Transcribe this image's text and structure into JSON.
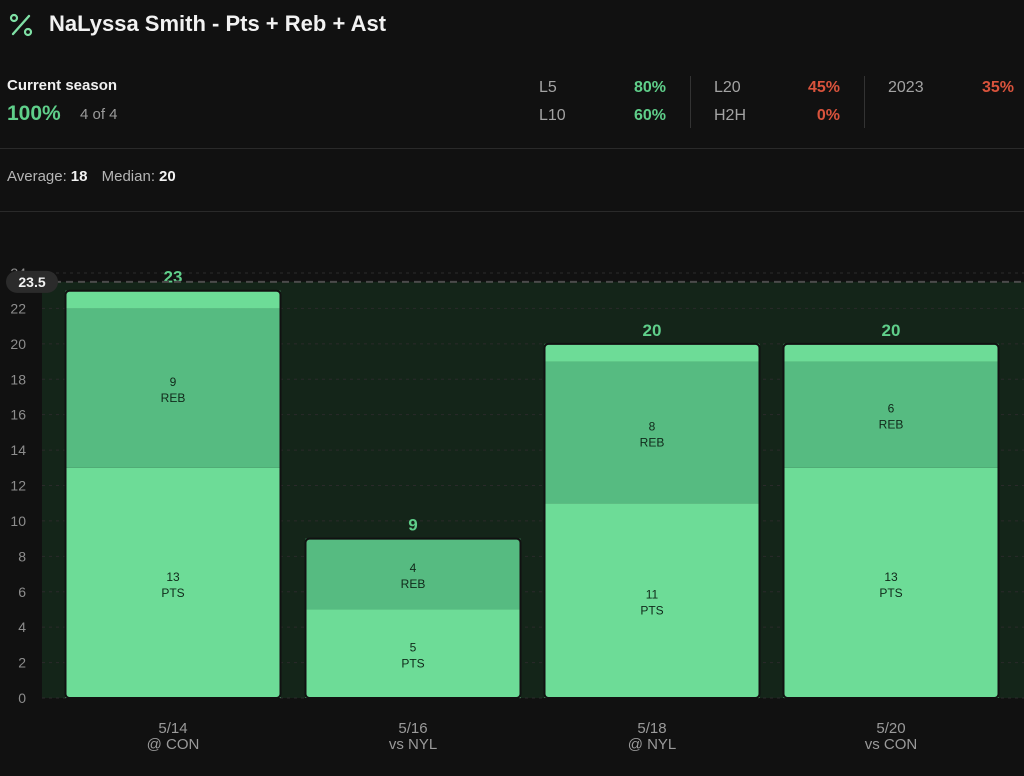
{
  "header": {
    "icon": "percent-icon",
    "title": "NaLyssa Smith - Pts + Reb + Ast"
  },
  "summary": {
    "label": "Current season",
    "hit_pct": "100%",
    "hit_count": "4 of 4"
  },
  "stats": {
    "l5_label": "L5",
    "l5_value": "80%",
    "l10_label": "L10",
    "l10_value": "60%",
    "l20_label": "L20",
    "l20_value": "45%",
    "h2h_label": "H2H",
    "h2h_value": "0%",
    "season_label": "2023",
    "season_value": "35%"
  },
  "averages": {
    "average_label": "Average:",
    "average_value": "18",
    "median_label": "Median:",
    "median_value": "20"
  },
  "colors": {
    "pts": "#6ddc97",
    "reb": "#56bb81",
    "ast": "#6ddc97",
    "positive": "#5fcf8a",
    "negative": "#d9533c"
  },
  "chart_data": {
    "type": "bar",
    "stacked": true,
    "line": 23.5,
    "line_label": "23.5",
    "ylim": [
      0,
      24
    ],
    "yticks": [
      0,
      2,
      4,
      6,
      8,
      10,
      12,
      14,
      16,
      18,
      20,
      22,
      24
    ],
    "categories": [
      "5/14",
      "5/16",
      "5/18",
      "5/20"
    ],
    "opponents": [
      "@ CON",
      "vs NYL",
      "@ NYL",
      "vs CON"
    ],
    "totals": [
      23,
      9,
      20,
      20
    ],
    "series": [
      {
        "name": "PTS",
        "values": [
          13,
          5,
          11,
          13
        ]
      },
      {
        "name": "REB",
        "values": [
          9,
          4,
          8,
          6
        ]
      },
      {
        "name": "AST",
        "values": [
          1,
          0,
          1,
          1
        ]
      }
    ]
  }
}
